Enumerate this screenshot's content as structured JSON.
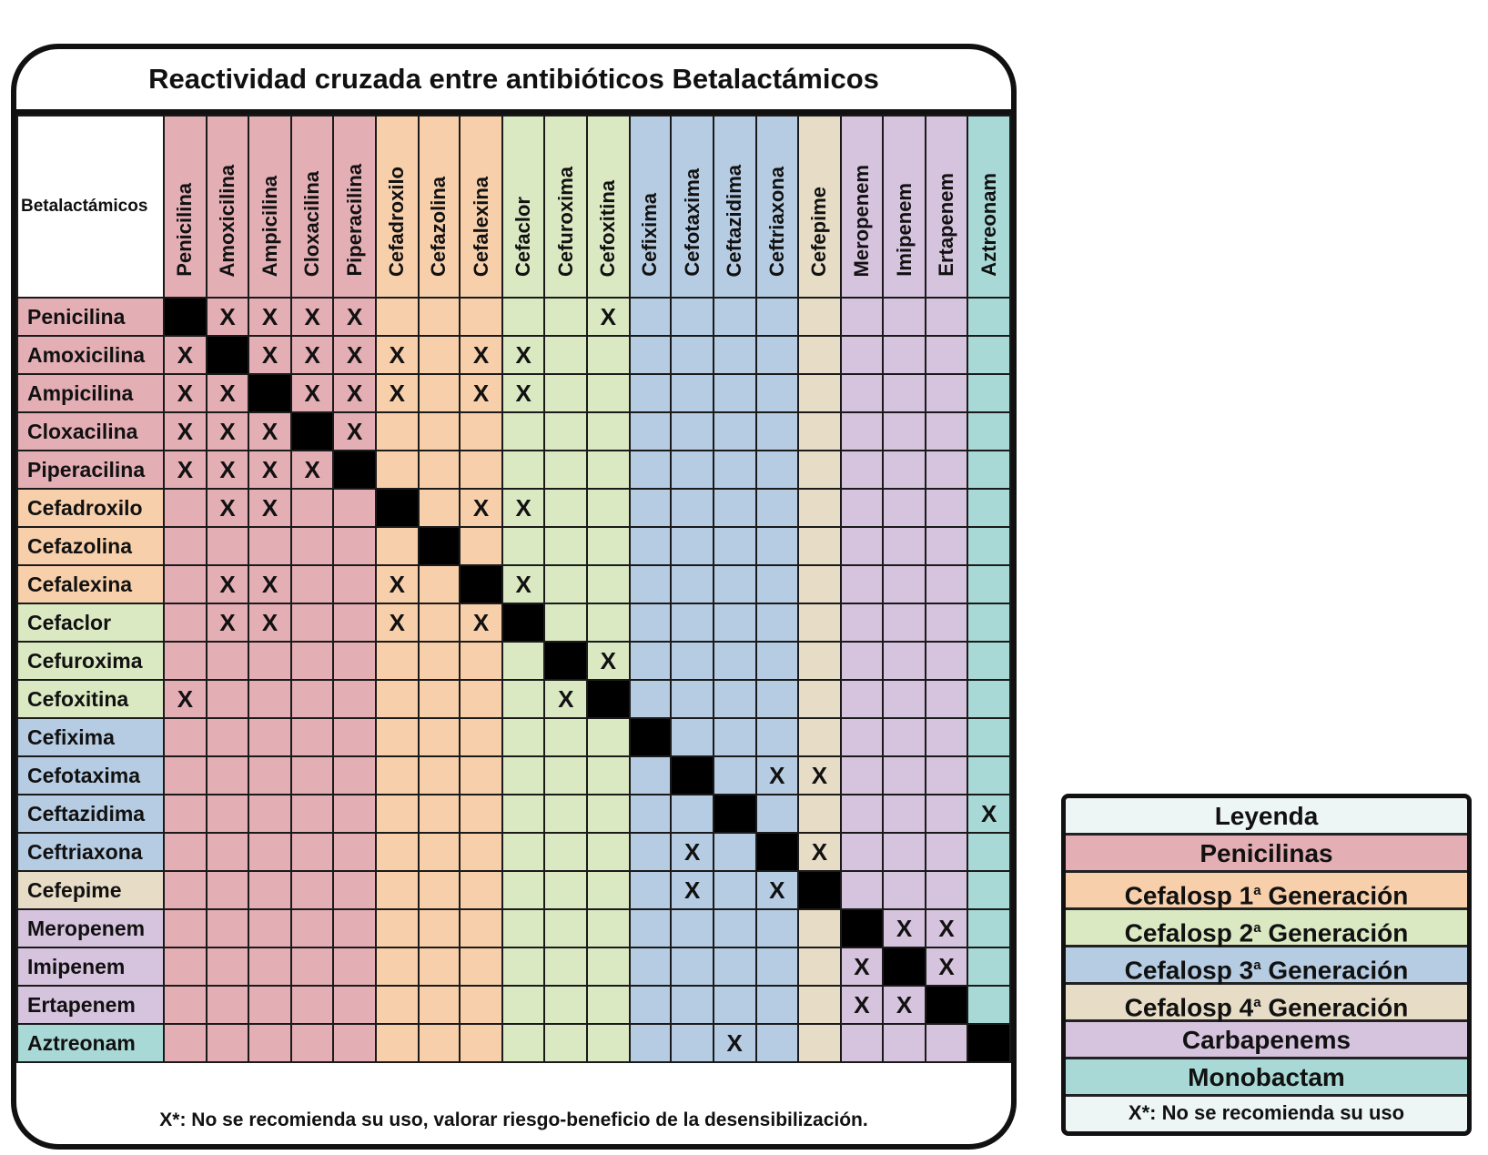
{
  "colors": {
    "penicilinas": "#e4aeb5",
    "cef1": "#f8cfab",
    "cef2": "#dbe9c3",
    "cef3": "#b6cce3",
    "cef4": "#e7dcc6",
    "carbapenems": "#d6c3de",
    "monobactam": "#a9d9d6",
    "diagonal": "#000000"
  },
  "chart_data": {
    "type": "table",
    "title": "Reactividad cruzada entre antibióticos Betalactámicos",
    "corner_label": "Betalactámicos",
    "drugs": [
      {
        "name": "Penicilina",
        "group": "penicilinas"
      },
      {
        "name": "Amoxicilina",
        "group": "penicilinas"
      },
      {
        "name": "Ampicilina",
        "group": "penicilinas"
      },
      {
        "name": "Cloxacilina",
        "group": "penicilinas"
      },
      {
        "name": "Piperacilina",
        "group": "penicilinas"
      },
      {
        "name": "Cefadroxilo",
        "group": "cef1"
      },
      {
        "name": "Cefazolina",
        "group": "cef1"
      },
      {
        "name": "Cefalexina",
        "group": "cef1"
      },
      {
        "name": "Cefaclor",
        "group": "cef2"
      },
      {
        "name": "Cefuroxima",
        "group": "cef2"
      },
      {
        "name": "Cefoxitina",
        "group": "cef2"
      },
      {
        "name": "Cefixima",
        "group": "cef3"
      },
      {
        "name": "Cefotaxima",
        "group": "cef3"
      },
      {
        "name": "Ceftazidima",
        "group": "cef3"
      },
      {
        "name": "Ceftriaxona",
        "group": "cef3"
      },
      {
        "name": "Cefepime",
        "group": "cef4"
      },
      {
        "name": "Meropenem",
        "group": "carbapenems"
      },
      {
        "name": "Imipenem",
        "group": "carbapenems"
      },
      {
        "name": "Ertapenem",
        "group": "carbapenems"
      },
      {
        "name": "Aztreonam",
        "group": "monobactam"
      }
    ],
    "marker": "X",
    "cross_reactivity": [
      [
        0,
        1
      ],
      [
        0,
        2
      ],
      [
        0,
        3
      ],
      [
        0,
        4
      ],
      [
        0,
        10
      ],
      [
        1,
        0
      ],
      [
        1,
        2
      ],
      [
        1,
        3
      ],
      [
        1,
        4
      ],
      [
        1,
        5
      ],
      [
        1,
        7
      ],
      [
        1,
        8
      ],
      [
        2,
        0
      ],
      [
        2,
        1
      ],
      [
        2,
        3
      ],
      [
        2,
        4
      ],
      [
        2,
        5
      ],
      [
        2,
        7
      ],
      [
        2,
        8
      ],
      [
        3,
        0
      ],
      [
        3,
        1
      ],
      [
        3,
        2
      ],
      [
        3,
        4
      ],
      [
        4,
        0
      ],
      [
        4,
        1
      ],
      [
        4,
        2
      ],
      [
        4,
        3
      ],
      [
        5,
        1
      ],
      [
        5,
        2
      ],
      [
        5,
        7
      ],
      [
        5,
        8
      ],
      [
        7,
        1
      ],
      [
        7,
        2
      ],
      [
        7,
        5
      ],
      [
        7,
        8
      ],
      [
        8,
        1
      ],
      [
        8,
        2
      ],
      [
        8,
        5
      ],
      [
        8,
        7
      ],
      [
        9,
        10
      ],
      [
        10,
        0
      ],
      [
        10,
        9
      ],
      [
        12,
        14
      ],
      [
        12,
        15
      ],
      [
        13,
        19
      ],
      [
        14,
        12
      ],
      [
        14,
        15
      ],
      [
        15,
        12
      ],
      [
        15,
        14
      ],
      [
        16,
        17
      ],
      [
        16,
        18
      ],
      [
        17,
        16
      ],
      [
        17,
        18
      ],
      [
        18,
        16
      ],
      [
        18,
        17
      ],
      [
        19,
        13
      ]
    ],
    "footnote": "X*: No se recomienda su uso, valorar riesgo-beneficio de la desensibilización."
  },
  "legend": {
    "title": "Leyenda",
    "items": [
      {
        "key": "penicilinas",
        "label": "Penicilinas",
        "sup": ""
      },
      {
        "key": "cef1",
        "label": "Cefalosp 1",
        "sup": "a",
        "suffix": " Generación"
      },
      {
        "key": "cef2",
        "label": "Cefalosp 2",
        "sup": "a",
        "suffix": " Generación"
      },
      {
        "key": "cef3",
        "label": "Cefalosp 3",
        "sup": "a",
        "suffix": " Generación"
      },
      {
        "key": "cef4",
        "label": "Cefalosp 4",
        "sup": "a",
        "suffix": " Generación"
      },
      {
        "key": "carbapenems",
        "label": "Carbapenems",
        "sup": ""
      },
      {
        "key": "monobactam",
        "label": "Monobactam",
        "sup": ""
      }
    ],
    "note": "X*: No se recomienda su uso"
  }
}
